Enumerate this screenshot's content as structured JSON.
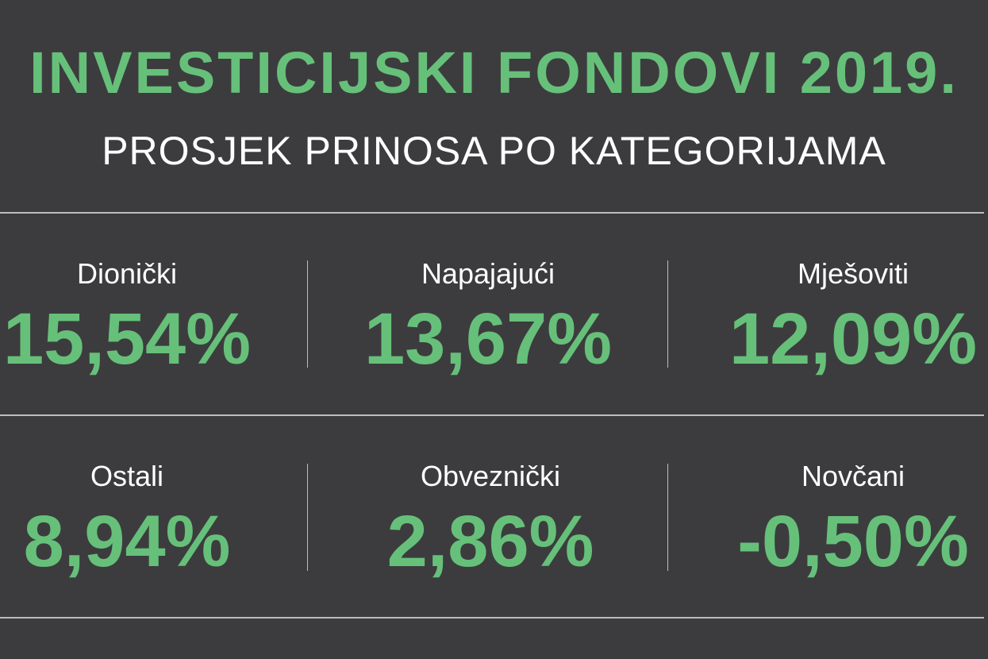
{
  "title": "INVESTICIJSKI FONDOVI 2019.",
  "subtitle": "PROSJEK PRINOSA PO KATEGORIJAMA",
  "colors": {
    "background": "#3c3c3e",
    "accent": "#66c07a",
    "text": "#ffffff"
  },
  "categories": [
    {
      "label": "Dionički",
      "value": "15,54%"
    },
    {
      "label": "Napajajući",
      "value": "13,67%"
    },
    {
      "label": "Mješoviti",
      "value": "12,09%"
    },
    {
      "label": "Ostali",
      "value": "8,94%"
    },
    {
      "label": "Obveznički",
      "value": "2,86%"
    },
    {
      "label": "Novčani",
      "value": "-0,50%"
    }
  ]
}
